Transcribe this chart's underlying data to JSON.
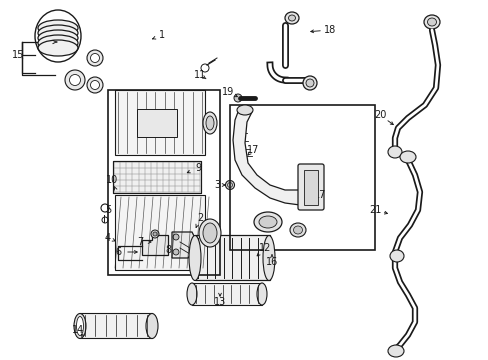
{
  "bg_color": "#ffffff",
  "line_color": "#1a1a1a",
  "fig_width": 4.89,
  "fig_height": 3.6,
  "dpi": 100,
  "font_size": 7.0,
  "lw": 1.0
}
